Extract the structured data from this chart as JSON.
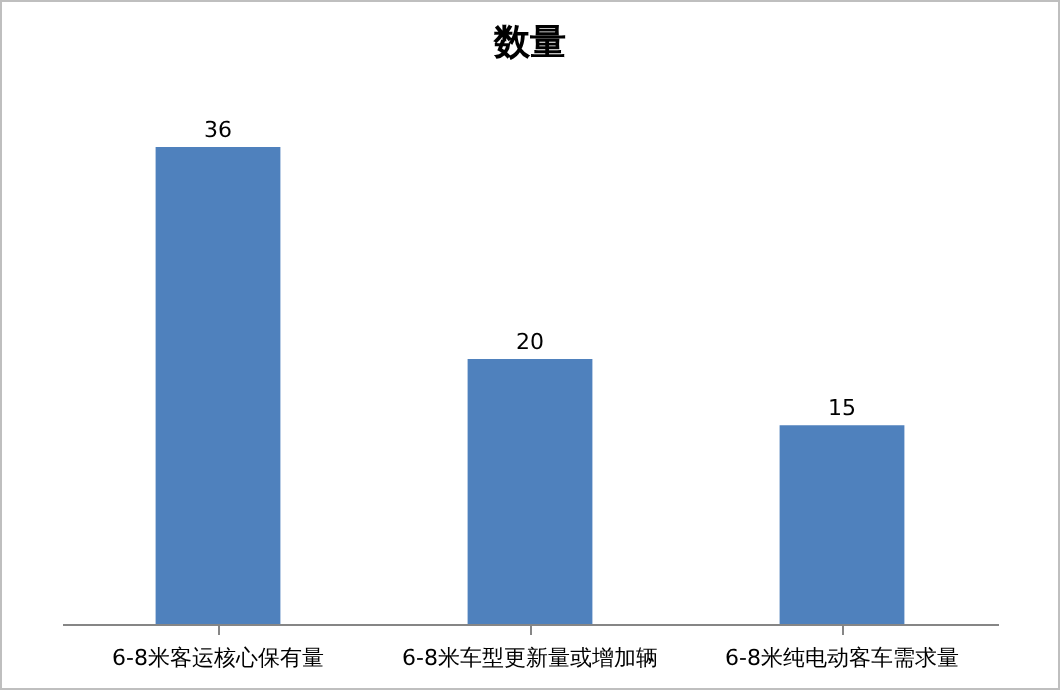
{
  "chart_data": {
    "type": "bar",
    "title": "数量",
    "categories": [
      "6-8米客运核心保有量",
      "6-8米车型更新量或增加辆",
      "6-8米纯电动客车需求量"
    ],
    "values": [
      36,
      20,
      15
    ],
    "color": "#4f81bd",
    "data_labels": true,
    "grid": false,
    "tick_labels": "x"
  }
}
